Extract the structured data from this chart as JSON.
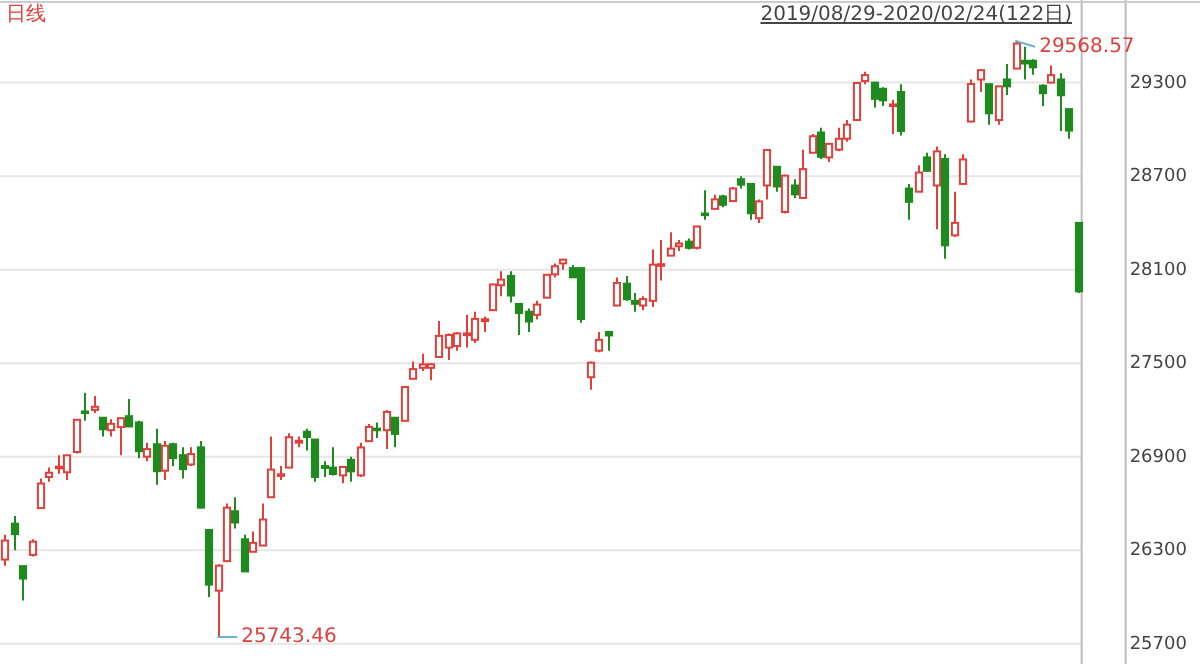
{
  "chart_data": {
    "type": "candlestick",
    "title": "日线",
    "subtitle": "2019/08/29-2020/02/24(122日)",
    "annotations": [
      "29568.57",
      "25743.46"
    ],
    "ylim": [
      25570,
      29830
    ],
    "yticks": [
      25700,
      26300,
      26900,
      27500,
      28100,
      28700,
      29300
    ],
    "grid": "y",
    "categories": [
      null,
      null,
      null,
      null,
      null,
      null,
      null,
      null,
      null,
      null,
      null,
      null,
      null,
      null,
      null,
      null,
      null,
      null,
      null,
      null,
      null,
      null,
      null,
      null,
      null,
      null,
      null,
      null,
      null,
      null,
      null,
      null,
      null,
      null,
      null,
      null,
      null,
      null,
      null,
      null,
      null,
      null,
      null,
      null,
      null,
      null,
      null,
      null,
      null,
      null,
      null,
      null,
      null,
      null,
      null,
      null,
      null,
      null,
      null,
      null,
      null,
      null,
      null,
      null,
      null,
      null,
      null,
      null,
      null,
      null,
      null,
      null,
      null,
      null,
      null,
      null,
      null,
      null,
      null,
      null,
      null,
      null,
      null,
      null,
      null,
      null,
      null,
      null,
      null,
      null,
      null,
      null,
      null,
      null,
      null,
      null,
      null,
      null,
      null,
      null,
      null,
      null,
      null,
      null,
      null,
      null,
      null,
      null,
      null,
      null,
      null,
      null,
      null,
      null,
      null,
      null,
      null,
      null,
      null,
      null,
      null,
      null
    ],
    "ohlc": [
      [
        26240,
        26400,
        26200,
        26362
      ],
      [
        26470,
        26520,
        26300,
        26403
      ],
      [
        26198,
        26198,
        25978,
        26118
      ],
      [
        26270,
        26370,
        26260,
        26355
      ],
      [
        26570,
        26760,
        26570,
        26728
      ],
      [
        26770,
        26830,
        26740,
        26797
      ],
      [
        26830,
        26910,
        26790,
        26836
      ],
      [
        26800,
        26910,
        26750,
        26909
      ],
      [
        26930,
        27140,
        26920,
        27137
      ],
      [
        27190,
        27310,
        27130,
        27182
      ],
      [
        27200,
        27290,
        27180,
        27220
      ],
      [
        27150,
        27150,
        27030,
        27076
      ],
      [
        27070,
        27140,
        27030,
        27111
      ],
      [
        27090,
        27150,
        26910,
        27147
      ],
      [
        27160,
        27270,
        27090,
        27094
      ],
      [
        27120,
        27130,
        26890,
        26935
      ],
      [
        26900,
        26990,
        26870,
        26949
      ],
      [
        26980,
        27080,
        26720,
        26807
      ],
      [
        26810,
        27000,
        26750,
        26970
      ],
      [
        26980,
        26990,
        26840,
        26891
      ],
      [
        26910,
        26960,
        26760,
        26820
      ],
      [
        26850,
        26960,
        26840,
        26917
      ],
      [
        26960,
        27000,
        26570,
        26573
      ],
      [
        26430,
        26430,
        26000,
        26079
      ],
      [
        26040,
        26210,
        25743.46,
        26201
      ],
      [
        26230,
        26600,
        26230,
        26573
      ],
      [
        26550,
        26640,
        26440,
        26478
      ],
      [
        26370,
        26400,
        26160,
        26164
      ],
      [
        26290,
        26420,
        26290,
        26347
      ],
      [
        26330,
        26600,
        26330,
        26497
      ],
      [
        26640,
        27030,
        26640,
        26817
      ],
      [
        26780,
        26840,
        26750,
        26787
      ],
      [
        26830,
        27050,
        26830,
        27025
      ],
      [
        26990,
        27030,
        26960,
        27002
      ],
      [
        27060,
        27080,
        26940,
        27026
      ],
      [
        27010,
        27010,
        26740,
        26770
      ],
      [
        26840,
        26870,
        26770,
        26828
      ],
      [
        26830,
        26960,
        26780,
        26789
      ],
      [
        26780,
        26840,
        26730,
        26834
      ],
      [
        26880,
        26900,
        26740,
        26806
      ],
      [
        26780,
        26990,
        26770,
        26959
      ],
      [
        27000,
        27110,
        27000,
        27091
      ],
      [
        27080,
        27120,
        27020,
        27071
      ],
      [
        27070,
        27200,
        26950,
        27187
      ],
      [
        27150,
        27150,
        26960,
        27046
      ],
      [
        27130,
        27350,
        27130,
        27347
      ],
      [
        27400,
        27510,
        27400,
        27462
      ],
      [
        27470,
        27560,
        27450,
        27492
      ],
      [
        27470,
        27500,
        27390,
        27493
      ],
      [
        27540,
        27770,
        27540,
        27675
      ],
      [
        27600,
        27690,
        27520,
        27681
      ],
      [
        27610,
        27700,
        27580,
        27691
      ],
      [
        27680,
        27810,
        27600,
        27691
      ],
      [
        27650,
        27830,
        27630,
        27784
      ],
      [
        27770,
        27800,
        27700,
        27782
      ],
      [
        27840,
        28010,
        27840,
        28005
      ],
      [
        28000,
        28090,
        27930,
        28036
      ],
      [
        28060,
        28090,
        27890,
        27934
      ],
      [
        27880,
        27880,
        27680,
        27822
      ],
      [
        27830,
        27850,
        27700,
        27767
      ],
      [
        27810,
        27900,
        27780,
        27876
      ],
      [
        27920,
        28070,
        27920,
        28067
      ],
      [
        28070,
        28140,
        28050,
        28122
      ],
      [
        28140,
        28170,
        28100,
        28164
      ],
      [
        28110,
        28130,
        28050,
        28051
      ],
      [
        28110,
        28110,
        27760,
        27783
      ],
      [
        27410,
        27510,
        27330,
        27503
      ],
      [
        27580,
        27700,
        27570,
        27650
      ],
      [
        27700,
        27700,
        27580,
        27678
      ],
      [
        27870,
        28050,
        27870,
        28015
      ],
      [
        28010,
        28060,
        27900,
        27910
      ],
      [
        27900,
        27950,
        27830,
        27881
      ],
      [
        27870,
        27930,
        27840,
        27911
      ],
      [
        27900,
        28230,
        27860,
        28132
      ],
      [
        28130,
        28290,
        28030,
        28135
      ],
      [
        28190,
        28340,
        28190,
        28235
      ],
      [
        28250,
        28290,
        28220,
        28268
      ],
      [
        28280,
        28300,
        28230,
        28240
      ],
      [
        28240,
        28380,
        28230,
        28377
      ],
      [
        28460,
        28610,
        28420,
        28455
      ],
      [
        28490,
        28580,
        28490,
        28551
      ],
      [
        28570,
        28580,
        28500,
        28516
      ],
      [
        28540,
        28630,
        28540,
        28621
      ],
      [
        28680,
        28700,
        28620,
        28645
      ],
      [
        28650,
        28650,
        28420,
        28462
      ],
      [
        28430,
        28550,
        28400,
        28538
      ],
      [
        28640,
        28870,
        28550,
        28868
      ],
      [
        28760,
        28760,
        28600,
        28634
      ],
      [
        28470,
        28710,
        28460,
        28703
      ],
      [
        28640,
        28680,
        28560,
        28583
      ],
      [
        28560,
        28870,
        28560,
        28745
      ],
      [
        28850,
        28970,
        28850,
        28956
      ],
      [
        28980,
        29010,
        28810,
        28824
      ],
      [
        28820,
        28910,
        28790,
        28907
      ],
      [
        28870,
        29010,
        28860,
        28940
      ],
      [
        28940,
        29060,
        28920,
        29030
      ],
      [
        29060,
        29300,
        29060,
        29298
      ],
      [
        29310,
        29370,
        29290,
        29348
      ],
      [
        29300,
        29300,
        29140,
        29196
      ],
      [
        29260,
        29270,
        29150,
        29186
      ],
      [
        29160,
        29190,
        28970,
        29160
      ],
      [
        29240,
        29290,
        28960,
        28990
      ],
      [
        28620,
        28650,
        28420,
        28535
      ],
      [
        28600,
        28770,
        28600,
        28723
      ],
      [
        28820,
        28850,
        28730,
        28734
      ],
      [
        28640,
        28890,
        28360,
        28859
      ],
      [
        28810,
        28840,
        28170,
        28256
      ],
      [
        28320,
        28600,
        28310,
        28400
      ],
      [
        28650,
        28840,
        28650,
        28807
      ],
      [
        29050,
        29320,
        29050,
        29291
      ],
      [
        29320,
        29380,
        29240,
        29380
      ],
      [
        29290,
        29290,
        29030,
        29103
      ],
      [
        29060,
        29280,
        29030,
        29276
      ],
      [
        29320,
        29420,
        29220,
        29276
      ],
      [
        29390,
        29568.57,
        29390,
        29551
      ],
      [
        29440,
        29530,
        29320,
        29423
      ],
      [
        29440,
        29450,
        29350,
        29398
      ],
      [
        29280,
        29290,
        29150,
        29232
      ],
      [
        29300,
        29410,
        29300,
        29348
      ],
      [
        29320,
        29360,
        28990,
        29219
      ],
      [
        29130,
        29130,
        28940,
        28992
      ],
      [
        28400,
        28400,
        27950,
        27961
      ]
    ],
    "colors": [
      "#e0403c",
      "#1f8a1f",
      "#1f8a1f",
      "#e0403c",
      "#e0403c",
      "#e0403c",
      "#e0403c",
      "#e0403c",
      "#e0403c",
      "#1f8a1f",
      "#e0403c",
      "#1f8a1f",
      "#e0403c",
      "#e0403c",
      "#1f8a1f",
      "#1f8a1f",
      "#e0403c",
      "#1f8a1f",
      "#e0403c",
      "#1f8a1f",
      "#1f8a1f",
      "#e0403c",
      "#1f8a1f",
      "#1f8a1f",
      "#e0403c",
      "#e0403c",
      "#1f8a1f",
      "#1f8a1f",
      "#e0403c",
      "#e0403c",
      "#e0403c",
      "#e0403c",
      "#e0403c",
      "#e0403c",
      "#1f8a1f",
      "#1f8a1f",
      "#1f8a1f",
      "#1f8a1f",
      "#e0403c",
      "#1f8a1f",
      "#e0403c",
      "#e0403c",
      "#1f8a1f",
      "#e0403c",
      "#1f8a1f",
      "#e0403c",
      "#e0403c",
      "#e0403c",
      "#e0403c",
      "#e0403c",
      "#e0403c",
      "#e0403c",
      "#e0403c",
      "#e0403c",
      "#e0403c",
      "#e0403c",
      "#e0403c",
      "#1f8a1f",
      "#1f8a1f",
      "#1f8a1f",
      "#e0403c",
      "#e0403c",
      "#e0403c",
      "#e0403c",
      "#1f8a1f",
      "#1f8a1f",
      "#e0403c",
      "#e0403c",
      "#1f8a1f",
      "#e0403c",
      "#1f8a1f",
      "#1f8a1f",
      "#e0403c",
      "#e0403c",
      "#e0403c",
      "#e0403c",
      "#e0403c",
      "#1f8a1f",
      "#e0403c",
      "#1f8a1f",
      "#e0403c",
      "#1f8a1f",
      "#e0403c",
      "#1f8a1f",
      "#1f8a1f",
      "#e0403c",
      "#e0403c",
      "#1f8a1f",
      "#e0403c",
      "#1f8a1f",
      "#e0403c",
      "#e0403c",
      "#1f8a1f",
      "#e0403c",
      "#e0403c",
      "#e0403c",
      "#e0403c",
      "#e0403c",
      "#1f8a1f",
      "#1f8a1f",
      "#e0403c",
      "#1f8a1f",
      "#1f8a1f",
      "#e0403c",
      "#1f8a1f",
      "#e0403c",
      "#1f8a1f",
      "#e0403c",
      "#e0403c",
      "#e0403c",
      "#e0403c",
      "#1f8a1f",
      "#e0403c",
      "#1f8a1f",
      "#e0403c",
      "#1f8a1f",
      "#1f8a1f",
      "#1f8a1f",
      "#e0403c",
      "#1f8a1f",
      "#1f8a1f",
      "#1f8a1f"
    ]
  }
}
